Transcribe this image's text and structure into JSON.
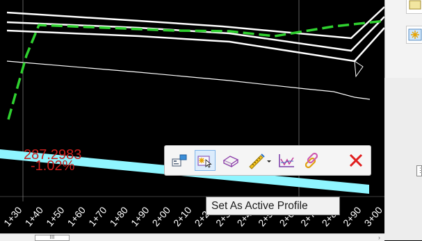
{
  "profile": {
    "station_labels": [
      "1+30",
      "1+40",
      "1+50",
      "1+60",
      "1+70",
      "1+80",
      "1+90",
      "2+00",
      "2+10",
      "2+20",
      "2+30",
      "2+40",
      "2+50",
      "2+60",
      "2+70",
      "2+80",
      "2+90",
      "3+00"
    ],
    "elevation_label": "287.2983",
    "grade_label": "-1.02%",
    "colors": {
      "background": "#000000",
      "active_profile": "#2fd12f",
      "design_lines": "#ffffff",
      "selected_profile": "#8ff5ff",
      "annotation": "#c8201e",
      "grid": "#7a7a7a"
    }
  },
  "toolbar": {
    "items": [
      {
        "name": "profile-properties-icon",
        "tooltip": ""
      },
      {
        "name": "set-active-profile-icon",
        "tooltip": "Set As Active Profile",
        "active": true
      },
      {
        "name": "eraser-icon",
        "tooltip": ""
      },
      {
        "name": "measure-tool-icon",
        "tooltip": ""
      },
      {
        "name": "profile-chart-icon",
        "tooltip": ""
      },
      {
        "name": "link-icon",
        "tooltip": ""
      },
      {
        "name": "delete-icon",
        "tooltip": ""
      }
    ]
  },
  "tooltip": {
    "text": "Set As Active Profile"
  },
  "scrollbar": {
    "thumb_glyph": "III",
    "arrow": "›"
  },
  "side_panel": {
    "mark": "⋮"
  }
}
